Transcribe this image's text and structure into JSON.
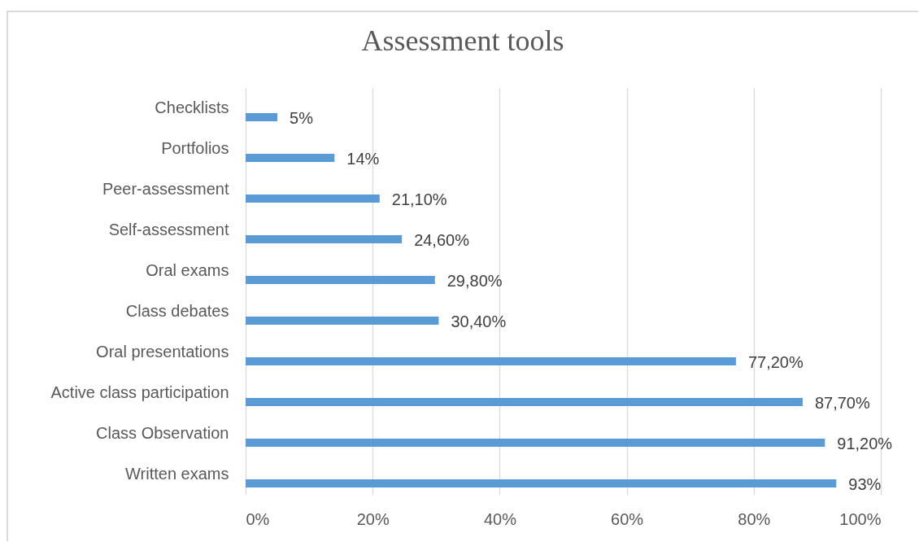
{
  "chart_data": {
    "type": "bar",
    "orientation": "horizontal",
    "title": "Assessment tools",
    "categories": [
      "Checklists",
      "Portfolios",
      "Peer-assessment",
      "Self-assessment",
      "Oral exams",
      "Class debates",
      "Oral presentations",
      "Active class participation",
      "Class Observation",
      "Written exams"
    ],
    "values": [
      5,
      14,
      21.1,
      24.6,
      29.8,
      30.4,
      77.2,
      87.7,
      91.2,
      93
    ],
    "color": "#5b9bd5",
    "value_labels": [
      "5%",
      "14%",
      "21,10%",
      "24,60%",
      "29,80%",
      "30,40%",
      "77,20%",
      "87,70%",
      "91,20%",
      "93%"
    ],
    "xlim": [
      0,
      100
    ],
    "xticks": [
      {
        "value": 0,
        "label": "0%"
      },
      {
        "value": 20,
        "label": "20%"
      },
      {
        "value": 40,
        "label": "40%"
      },
      {
        "value": 60,
        "label": "60%"
      },
      {
        "value": 80,
        "label": "80%"
      },
      {
        "value": 100,
        "label": "100%"
      }
    ],
    "grid": "x"
  }
}
